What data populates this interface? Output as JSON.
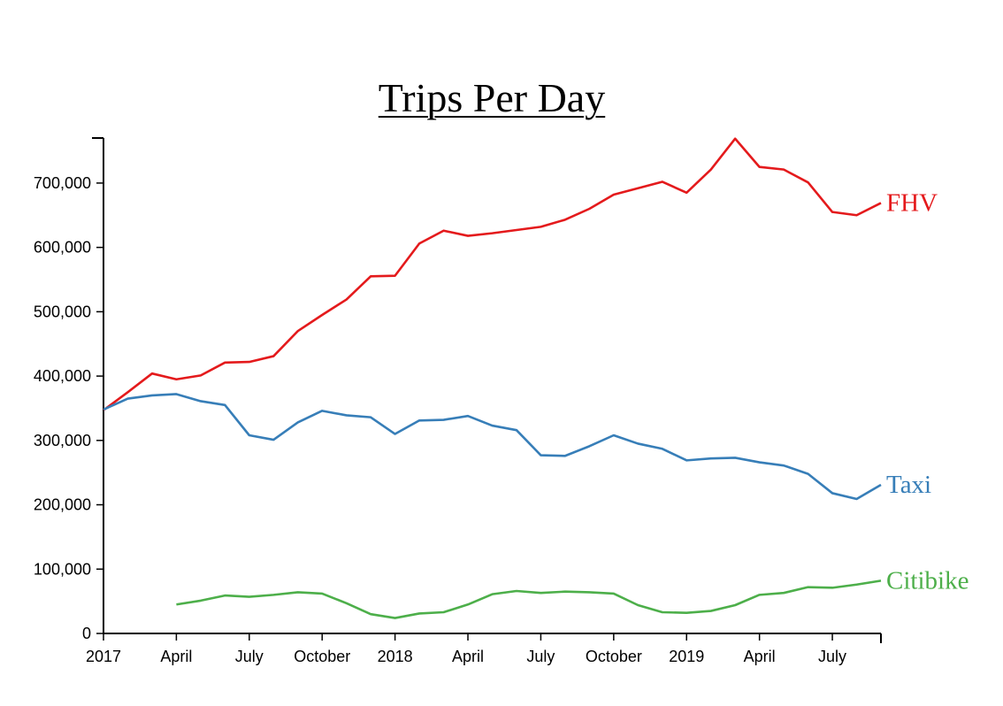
{
  "chart_data": {
    "type": "line",
    "title": "Trips Per Day",
    "xlabel": "",
    "ylabel": "",
    "ylim": [
      0,
      770000
    ],
    "y_ticks": [
      0,
      100000,
      200000,
      300000,
      400000,
      500000,
      600000,
      700000
    ],
    "y_tick_labels": [
      "0",
      "100,000",
      "200,000",
      "300,000",
      "400,000",
      "500,000",
      "600,000",
      "700,000"
    ],
    "x": [
      "2017-01",
      "2017-02",
      "2017-03",
      "2017-04",
      "2017-05",
      "2017-06",
      "2017-07",
      "2017-08",
      "2017-09",
      "2017-10",
      "2017-11",
      "2017-12",
      "2018-01",
      "2018-02",
      "2018-03",
      "2018-04",
      "2018-05",
      "2018-06",
      "2018-07",
      "2018-08",
      "2018-09",
      "2018-10",
      "2018-11",
      "2018-12",
      "2019-01",
      "2019-02",
      "2019-03",
      "2019-04",
      "2019-05",
      "2019-06",
      "2019-07",
      "2019-08",
      "2019-09"
    ],
    "x_ticks": [
      "2017-01",
      "2017-04",
      "2017-07",
      "2017-10",
      "2018-01",
      "2018-04",
      "2018-07",
      "2018-10",
      "2019-01",
      "2019-04",
      "2019-07"
    ],
    "x_tick_labels": [
      "2017",
      "April",
      "July",
      "October",
      "2018",
      "April",
      "July",
      "October",
      "2019",
      "April",
      "July"
    ],
    "grid": false,
    "legend": "inline labels at right end of each line",
    "series": [
      {
        "name": "FHV",
        "color": "#e41a1c",
        "values": [
          347000,
          375000,
          404000,
          395000,
          401000,
          421000,
          422000,
          431000,
          470000,
          495000,
          519000,
          555000,
          556000,
          606000,
          626000,
          618000,
          622000,
          627000,
          632000,
          643000,
          660000,
          682000,
          692000,
          702000,
          685000,
          721000,
          769000,
          725000,
          721000,
          701000,
          655000,
          650000,
          669000
        ]
      },
      {
        "name": "Taxi",
        "color": "#377eb8",
        "values": [
          348000,
          365000,
          370000,
          372000,
          361000,
          355000,
          308000,
          301000,
          328000,
          346000,
          339000,
          336000,
          310000,
          331000,
          332000,
          338000,
          323000,
          316000,
          277000,
          276000,
          291000,
          308000,
          295000,
          287000,
          269000,
          272000,
          273000,
          266000,
          261000,
          248000,
          218000,
          209000,
          231000
        ]
      },
      {
        "name": "Citibike",
        "color": "#4daf4a",
        "values": [
          null,
          null,
          null,
          45000,
          51000,
          59000,
          57000,
          60000,
          64000,
          62000,
          47000,
          30000,
          24000,
          31000,
          33000,
          45000,
          61000,
          66000,
          63000,
          65000,
          64000,
          62000,
          44000,
          33000,
          32000,
          35000,
          44000,
          60000,
          63000,
          72000,
          71000,
          76000,
          82000
        ]
      }
    ]
  }
}
